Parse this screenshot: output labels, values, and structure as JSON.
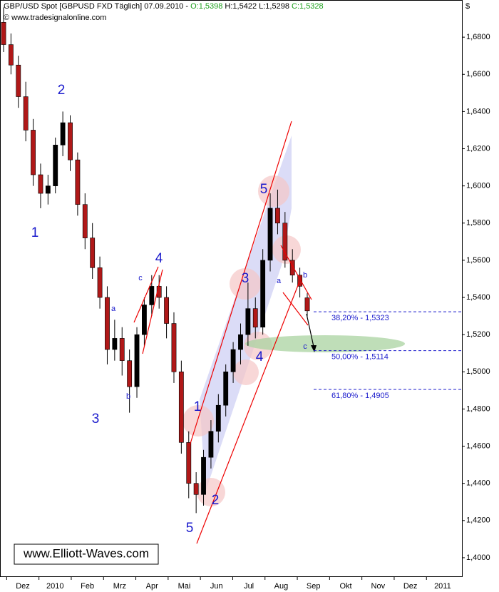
{
  "chart_data": {
    "type": "candlestick",
    "title": "GBP/USD Spot [GBPUSD FXD  Täglich] 07.09.2010 -",
    "quote_open": "O:1,5398",
    "quote_high_low": "H:1,5422 L:1,5298",
    "quote_close": "C:1,5328",
    "subtitle": "© www.tradesignalonline.com",
    "y_unit": "$",
    "watermark": "www.Elliott-Waves.com",
    "categories": [
      "Dez",
      "2010",
      "Feb",
      "Mrz",
      "Apr",
      "Mai",
      "Jun",
      "Jul",
      "Aug",
      "Sep",
      "Okt",
      "Nov",
      "Dez",
      "2011"
    ],
    "open": [
      1.688,
      1.676,
      1.665,
      1.648,
      1.63,
      1.606,
      1.596,
      1.6,
      1.622,
      1.634,
      1.614,
      1.59,
      1.572,
      1.556,
      1.54,
      1.512,
      1.518,
      1.506,
      1.492,
      1.52,
      1.536,
      1.546,
      1.54,
      1.526,
      1.5,
      1.462,
      1.44,
      1.434,
      1.454,
      1.468,
      1.482,
      1.5,
      1.512,
      1.52,
      1.534,
      1.524,
      1.56,
      1.588,
      1.58,
      1.56,
      1.552,
      1.5398
    ],
    "high": [
      1.696,
      1.682,
      1.67,
      1.656,
      1.636,
      1.612,
      1.606,
      1.626,
      1.64,
      1.638,
      1.618,
      1.596,
      1.58,
      1.562,
      1.546,
      1.528,
      1.524,
      1.512,
      1.524,
      1.54,
      1.552,
      1.552,
      1.546,
      1.532,
      1.506,
      1.468,
      1.446,
      1.458,
      1.474,
      1.488,
      1.504,
      1.516,
      1.526,
      1.548,
      1.54,
      1.566,
      1.596,
      1.598,
      1.586,
      1.566,
      1.556,
      1.5422
    ],
    "low": [
      1.672,
      1.66,
      1.642,
      1.624,
      1.6,
      1.588,
      1.59,
      1.596,
      1.616,
      1.608,
      1.584,
      1.566,
      1.55,
      1.534,
      1.504,
      1.506,
      1.498,
      1.478,
      1.486,
      1.514,
      1.53,
      1.534,
      1.518,
      1.494,
      1.456,
      1.432,
      1.424,
      1.428,
      1.448,
      1.462,
      1.476,
      1.494,
      1.504,
      1.514,
      1.518,
      1.52,
      1.554,
      1.574,
      1.556,
      1.548,
      1.54,
      1.5298
    ],
    "close": [
      1.676,
      1.665,
      1.648,
      1.63,
      1.606,
      1.596,
      1.6,
      1.622,
      1.634,
      1.614,
      1.59,
      1.572,
      1.556,
      1.54,
      1.512,
      1.518,
      1.506,
      1.492,
      1.52,
      1.536,
      1.546,
      1.54,
      1.526,
      1.5,
      1.462,
      1.44,
      1.434,
      1.454,
      1.468,
      1.482,
      1.5,
      1.512,
      1.52,
      1.534,
      1.524,
      1.56,
      1.588,
      1.58,
      1.56,
      1.552,
      1.546,
      1.5328
    ],
    "up_color": "#000000",
    "down_color": "#b01818",
    "ylim": [
      1.39,
      1.7
    ],
    "yticks": [
      {
        "value": 1.4,
        "label": "1,4000"
      },
      {
        "value": 1.42,
        "label": "1,4200"
      },
      {
        "value": 1.44,
        "label": "1,4400"
      },
      {
        "value": 1.46,
        "label": "1,4600"
      },
      {
        "value": 1.48,
        "label": "1,4800"
      },
      {
        "value": 1.5,
        "label": "1,5000"
      },
      {
        "value": 1.52,
        "label": "1,5200"
      },
      {
        "value": 1.54,
        "label": "1,5400"
      },
      {
        "value": 1.56,
        "label": "1,5600"
      },
      {
        "value": 1.58,
        "label": "1,5800"
      },
      {
        "value": 1.6,
        "label": "1,6000"
      },
      {
        "value": 1.62,
        "label": "1,6200"
      },
      {
        "value": 1.64,
        "label": "1,6400"
      },
      {
        "value": 1.66,
        "label": "1,6600"
      },
      {
        "value": 1.68,
        "label": "1,6800"
      }
    ],
    "fib_levels": [
      {
        "value": 1.5323,
        "label": "38,20% - 1,5323"
      },
      {
        "value": 1.5114,
        "label": "50,00% - 1,5114"
      },
      {
        "value": 1.4905,
        "label": "61,80% - 1,4905"
      }
    ],
    "fib_color": "#1a1acc",
    "annotations": [
      "1",
      "2",
      "3",
      "4",
      "5",
      "1",
      "2",
      "3",
      "4",
      "5",
      "c",
      "a",
      "b",
      "a",
      "b",
      "c"
    ]
  }
}
